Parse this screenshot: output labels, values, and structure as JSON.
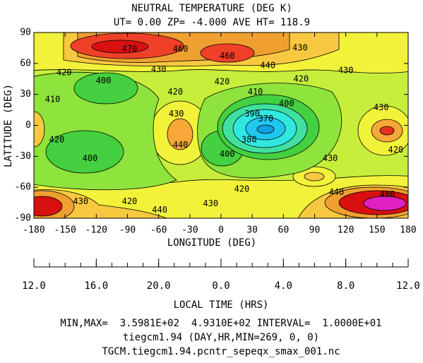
{
  "chart_data": {
    "type": "contour",
    "title": "NEUTRAL TEMPERATURE (DEG K)",
    "subtitle": "UT= 0.00 ZP= -4.000 AVE HT= 118.9",
    "xlabel": "LONGITUDE (DEG)",
    "ylabel": "LATITUDE (DEG)",
    "x2label": "LOCAL TIME (HRS)",
    "xlim": [
      -180,
      180
    ],
    "ylim": [
      -90,
      90
    ],
    "xticks": [
      -180,
      -150,
      -120,
      -90,
      -60,
      -30,
      0,
      30,
      60,
      90,
      120,
      150,
      180
    ],
    "yticks": [
      -90,
      -60,
      -30,
      0,
      30,
      60,
      90
    ],
    "x2ticks": [
      {
        "value": -180,
        "label": "12.0"
      },
      {
        "value": -120,
        "label": "16.0"
      },
      {
        "value": -60,
        "label": "20.0"
      },
      {
        "value": 0,
        "label": "0.0"
      },
      {
        "value": 60,
        "label": "4.0"
      },
      {
        "value": 120,
        "label": "8.0"
      },
      {
        "value": 180,
        "label": "12.0"
      }
    ],
    "contour_labels": [
      {
        "value": 470,
        "x": -88,
        "y": 74
      },
      {
        "value": 460,
        "x": -39,
        "y": 74
      },
      {
        "value": 460,
        "x": 6,
        "y": 67
      },
      {
        "value": 430,
        "x": 76,
        "y": 75
      },
      {
        "value": 440,
        "x": 45,
        "y": 58
      },
      {
        "value": 430,
        "x": 120,
        "y": 53
      },
      {
        "value": 420,
        "x": -151,
        "y": 51
      },
      {
        "value": 430,
        "x": -60,
        "y": 54
      },
      {
        "value": 420,
        "x": 1,
        "y": 42
      },
      {
        "value": 420,
        "x": 77,
        "y": 45
      },
      {
        "value": 400,
        "x": -113,
        "y": 43
      },
      {
        "value": 410,
        "x": 33,
        "y": 32
      },
      {
        "value": 420,
        "x": -44,
        "y": 32
      },
      {
        "value": 410,
        "x": -162,
        "y": 25
      },
      {
        "value": 400,
        "x": 63,
        "y": 21
      },
      {
        "value": 430,
        "x": 154,
        "y": 17
      },
      {
        "value": 430,
        "x": -43,
        "y": 11
      },
      {
        "value": 390,
        "x": 30,
        "y": 11
      },
      {
        "value": 370,
        "x": 43,
        "y": 6
      },
      {
        "value": 420,
        "x": -158,
        "y": -14
      },
      {
        "value": 440,
        "x": -39,
        "y": -19
      },
      {
        "value": 380,
        "x": 27,
        "y": -14
      },
      {
        "value": 420,
        "x": 168,
        "y": -24
      },
      {
        "value": 400,
        "x": -126,
        "y": -32
      },
      {
        "value": 430,
        "x": 105,
        "y": -32
      },
      {
        "value": 400,
        "x": 6,
        "y": -28
      },
      {
        "value": 420,
        "x": 20,
        "y": -62
      },
      {
        "value": 440,
        "x": 111,
        "y": -65
      },
      {
        "value": 480,
        "x": 160,
        "y": -67
      },
      {
        "value": 430,
        "x": -135,
        "y": -74
      },
      {
        "value": 420,
        "x": -88,
        "y": -74
      },
      {
        "value": 440,
        "x": -59,
        "y": -82
      },
      {
        "value": 430,
        "x": -10,
        "y": -76
      }
    ],
    "footer": [
      "MIN,MAX=  3.5981E+02  4.9310E+02 INTERVAL=  1.0000E+01",
      "tiegcm1.94 (DAY,HR,MIN=269, 0, 0)",
      "TGCM.tiegcm1.94.pcntr_sepeqx_smax_001.nc"
    ]
  }
}
